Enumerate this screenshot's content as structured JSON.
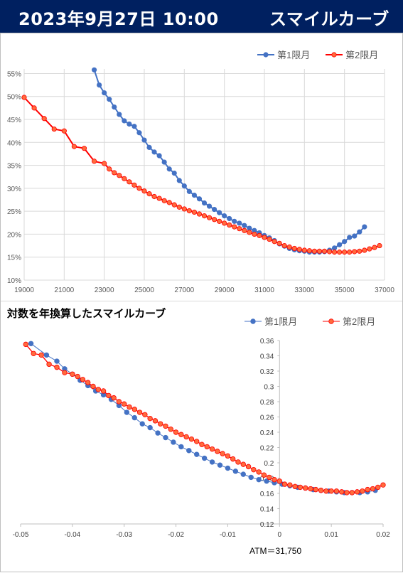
{
  "header": {
    "date": "2023年9月27日 10:00",
    "subtitle": "スマイルカーブ"
  },
  "colors": {
    "header_bg": "#002060",
    "series1": "#4472C4",
    "series2_line": "#FF0000",
    "series2_marker": "#FF6B3D",
    "grid": "#d9d9d9"
  },
  "chart_data": [
    {
      "type": "line",
      "title": "",
      "xlabel": "",
      "ylabel": "",
      "xlim": [
        19000,
        37000
      ],
      "ylim": [
        0.1,
        0.56
      ],
      "grid": true,
      "legend": "top-right",
      "x_ticks": [
        "19000",
        "21000",
        "23000",
        "25000",
        "27000",
        "29000",
        "31000",
        "33000",
        "35000",
        "37000"
      ],
      "y_ticks": [
        "10%",
        "15%",
        "20%",
        "25%",
        "30%",
        "35%",
        "40%",
        "45%",
        "50%",
        "55%"
      ],
      "series": [
        {
          "name": "第1限月",
          "x": [
            22500,
            22750,
            23000,
            23250,
            23500,
            23750,
            24000,
            24250,
            24500,
            24750,
            25000,
            25250,
            25500,
            25750,
            26000,
            26250,
            26500,
            26750,
            27000,
            27250,
            27500,
            27750,
            28000,
            28250,
            28500,
            28750,
            29000,
            29250,
            29500,
            29750,
            30000,
            30250,
            30500,
            30750,
            31000,
            31250,
            31500,
            31750,
            32000,
            32250,
            32500,
            32750,
            33000,
            33250,
            33500,
            33750,
            34000,
            34250,
            34500,
            34750,
            35000,
            35250,
            35500,
            35750,
            36000
          ],
          "values": [
            0.558,
            0.525,
            0.508,
            0.494,
            0.477,
            0.461,
            0.447,
            0.44,
            0.435,
            0.421,
            0.405,
            0.389,
            0.379,
            0.371,
            0.357,
            0.342,
            0.333,
            0.317,
            0.305,
            0.293,
            0.285,
            0.277,
            0.268,
            0.261,
            0.254,
            0.247,
            0.24,
            0.234,
            0.228,
            0.224,
            0.219,
            0.213,
            0.208,
            0.203,
            0.197,
            0.192,
            0.186,
            0.179,
            0.174,
            0.169,
            0.166,
            0.164,
            0.163,
            0.161,
            0.161,
            0.161,
            0.162,
            0.165,
            0.17,
            0.177,
            0.184,
            0.193,
            0.196,
            0.205,
            0.216
          ]
        },
        {
          "name": "第2限月",
          "x": [
            19000,
            19500,
            20000,
            20500,
            21000,
            21500,
            22000,
            22500,
            23000,
            23250,
            23500,
            23750,
            24000,
            24250,
            24500,
            24750,
            25000,
            25250,
            25500,
            25750,
            26000,
            26250,
            26500,
            26750,
            27000,
            27250,
            27500,
            27750,
            28000,
            28250,
            28500,
            28750,
            29000,
            29250,
            29500,
            29750,
            30000,
            30250,
            30500,
            30750,
            31000,
            31250,
            31500,
            31750,
            32000,
            32250,
            32500,
            32750,
            33000,
            33250,
            33500,
            33750,
            34000,
            34250,
            34500,
            34750,
            35000,
            35250,
            35500,
            35750,
            36000,
            36250,
            36500,
            36750
          ],
          "values": [
            0.498,
            0.475,
            0.452,
            0.429,
            0.425,
            0.391,
            0.387,
            0.359,
            0.354,
            0.342,
            0.334,
            0.328,
            0.321,
            0.314,
            0.307,
            0.3,
            0.294,
            0.288,
            0.282,
            0.278,
            0.273,
            0.269,
            0.264,
            0.259,
            0.255,
            0.251,
            0.248,
            0.244,
            0.24,
            0.236,
            0.232,
            0.228,
            0.224,
            0.22,
            0.216,
            0.212,
            0.208,
            0.204,
            0.2,
            0.197,
            0.193,
            0.189,
            0.184,
            0.18,
            0.175,
            0.172,
            0.169,
            0.167,
            0.165,
            0.164,
            0.163,
            0.163,
            0.163,
            0.162,
            0.161,
            0.161,
            0.161,
            0.161,
            0.162,
            0.163,
            0.165,
            0.168,
            0.171,
            0.175
          ]
        }
      ]
    },
    {
      "type": "scatter",
      "title": "対数を年換算したスマイルカーブ",
      "xlabel": "",
      "ylabel": "",
      "xlim": [
        -0.05,
        0.02
      ],
      "ylim": [
        0.12,
        0.36
      ],
      "grid": false,
      "legend": "top-right",
      "annotation": "ATM＝31,750",
      "x_ticks": [
        "-0.05",
        "-0.04",
        "-0.03",
        "-0.02",
        "-0.01",
        "0",
        "0.01",
        "0.02"
      ],
      "y_ticks": [
        "0.12",
        "0.14",
        "0.16",
        "0.18",
        "0.2",
        "0.22",
        "0.24",
        "0.26",
        "0.28",
        "0.3",
        "0.32",
        "0.34",
        "0.36"
      ],
      "series": [
        {
          "name": "第1限月",
          "x": [
            -0.048,
            -0.045,
            -0.043,
            -0.0415,
            -0.04,
            -0.0385,
            -0.037,
            -0.0355,
            -0.034,
            -0.0325,
            -0.031,
            -0.0295,
            -0.028,
            -0.0265,
            -0.025,
            -0.0235,
            -0.022,
            -0.0205,
            -0.019,
            -0.0175,
            -0.016,
            -0.0145,
            -0.013,
            -0.0115,
            -0.01,
            -0.0085,
            -0.007,
            -0.0055,
            -0.004,
            -0.0025,
            -0.001,
            0.0005,
            0.002,
            0.0035,
            0.005,
            0.0065,
            0.008,
            0.0095,
            0.011,
            0.0125,
            0.014,
            0.0155,
            0.017,
            0.0185
          ],
          "values": [
            0.356,
            0.341,
            0.333,
            0.323,
            0.316,
            0.308,
            0.301,
            0.294,
            0.289,
            0.283,
            0.275,
            0.266,
            0.259,
            0.251,
            0.246,
            0.239,
            0.233,
            0.227,
            0.221,
            0.216,
            0.211,
            0.206,
            0.201,
            0.197,
            0.193,
            0.189,
            0.185,
            0.181,
            0.178,
            0.176,
            0.174,
            0.172,
            0.17,
            0.168,
            0.167,
            0.165,
            0.164,
            0.163,
            0.162,
            0.161,
            0.161,
            0.161,
            0.162,
            0.164
          ]
        },
        {
          "name": "第2限月",
          "x": [
            -0.049,
            -0.0475,
            -0.046,
            -0.0445,
            -0.043,
            -0.0415,
            -0.04,
            -0.039,
            -0.038,
            -0.037,
            -0.036,
            -0.035,
            -0.034,
            -0.033,
            -0.032,
            -0.031,
            -0.03,
            -0.029,
            -0.028,
            -0.027,
            -0.026,
            -0.025,
            -0.024,
            -0.023,
            -0.022,
            -0.021,
            -0.02,
            -0.019,
            -0.018,
            -0.017,
            -0.016,
            -0.015,
            -0.014,
            -0.013,
            -0.012,
            -0.011,
            -0.01,
            -0.009,
            -0.008,
            -0.007,
            -0.006,
            -0.005,
            -0.004,
            -0.003,
            -0.002,
            -0.001,
            0.0,
            0.001,
            0.002,
            0.003,
            0.004,
            0.005,
            0.006,
            0.007,
            0.008,
            0.009,
            0.01,
            0.011,
            0.012,
            0.013,
            0.014,
            0.015,
            0.016,
            0.017,
            0.018,
            0.019,
            0.02
          ],
          "values": [
            0.355,
            0.343,
            0.341,
            0.329,
            0.325,
            0.318,
            0.316,
            0.313,
            0.309,
            0.305,
            0.3,
            0.296,
            0.294,
            0.288,
            0.285,
            0.28,
            0.277,
            0.273,
            0.27,
            0.266,
            0.263,
            0.258,
            0.255,
            0.251,
            0.248,
            0.244,
            0.24,
            0.237,
            0.234,
            0.231,
            0.228,
            0.224,
            0.221,
            0.218,
            0.215,
            0.212,
            0.209,
            0.205,
            0.201,
            0.198,
            0.195,
            0.191,
            0.188,
            0.184,
            0.181,
            0.178,
            0.176,
            0.172,
            0.171,
            0.169,
            0.168,
            0.167,
            0.166,
            0.165,
            0.164,
            0.163,
            0.163,
            0.163,
            0.162,
            0.161,
            0.161,
            0.162,
            0.163,
            0.165,
            0.166,
            0.168,
            0.171
          ]
        }
      ]
    }
  ]
}
